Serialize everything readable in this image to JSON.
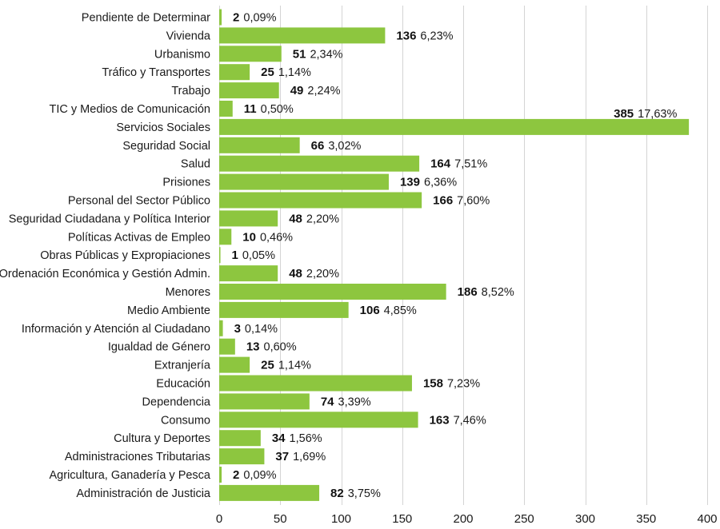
{
  "colors": {
    "bar": "#8dc63f",
    "grid": "#d4d4d4",
    "text": "#1a1a1a"
  },
  "chart_data": {
    "type": "bar",
    "orientation": "horizontal",
    "title": "",
    "xlabel": "",
    "ylabel": "",
    "xlim": [
      0,
      400
    ],
    "xticks": [
      0,
      50,
      100,
      150,
      200,
      250,
      300,
      350,
      400
    ],
    "grid": true,
    "categories": [
      "Pendiente de Determinar",
      "Vivienda",
      "Urbanismo",
      "Tráfico y Transportes",
      "Trabajo",
      "TIC y Medios de Comunicación",
      "Servicios Sociales",
      "Seguridad Social",
      "Salud",
      "Prisiones",
      "Personal del Sector Público",
      "Seguridad Ciudadana y Política Interior",
      "Políticas Activas de Empleo",
      "Obras Públicas y Expropiaciones",
      "Ordenación Económica y Gestión Admin.",
      "Menores",
      "Medio Ambiente",
      "Información y Atención al Ciudadano",
      "Igualdad de Género",
      "Extranjería",
      "Educación",
      "Dependencia",
      "Consumo",
      "Cultura y Deportes",
      "Administraciones Tributarias",
      "Agricultura, Ganadería y Pesca",
      "Administración de Justicia"
    ],
    "values": [
      2,
      136,
      51,
      25,
      49,
      11,
      385,
      66,
      164,
      139,
      166,
      48,
      10,
      1,
      48,
      186,
      106,
      3,
      13,
      25,
      158,
      74,
      163,
      34,
      37,
      2,
      82
    ],
    "value_labels": [
      "2",
      "136",
      "51",
      "25",
      "49",
      "11",
      "385",
      "66",
      "164",
      "139",
      "166",
      "48",
      "10",
      "1",
      "48",
      "186",
      "106",
      "3",
      "13",
      "25",
      "158",
      "74",
      "163",
      "34",
      "37",
      "2",
      "82"
    ],
    "percent_labels": [
      "0,09%",
      "6,23%",
      "2,34%",
      "1,14%",
      "2,24%",
      "0,50%",
      "17,63%",
      "3,02%",
      "7,51%",
      "6,36%",
      "7,60%",
      "2,20%",
      "0,46%",
      "0,05%",
      "2,20%",
      "8,52%",
      "4,85%",
      "0,14%",
      "0,60%",
      "1,14%",
      "7,23%",
      "3,39%",
      "7,46%",
      "1,56%",
      "1,69%",
      "0,09%",
      "3,75%"
    ]
  }
}
